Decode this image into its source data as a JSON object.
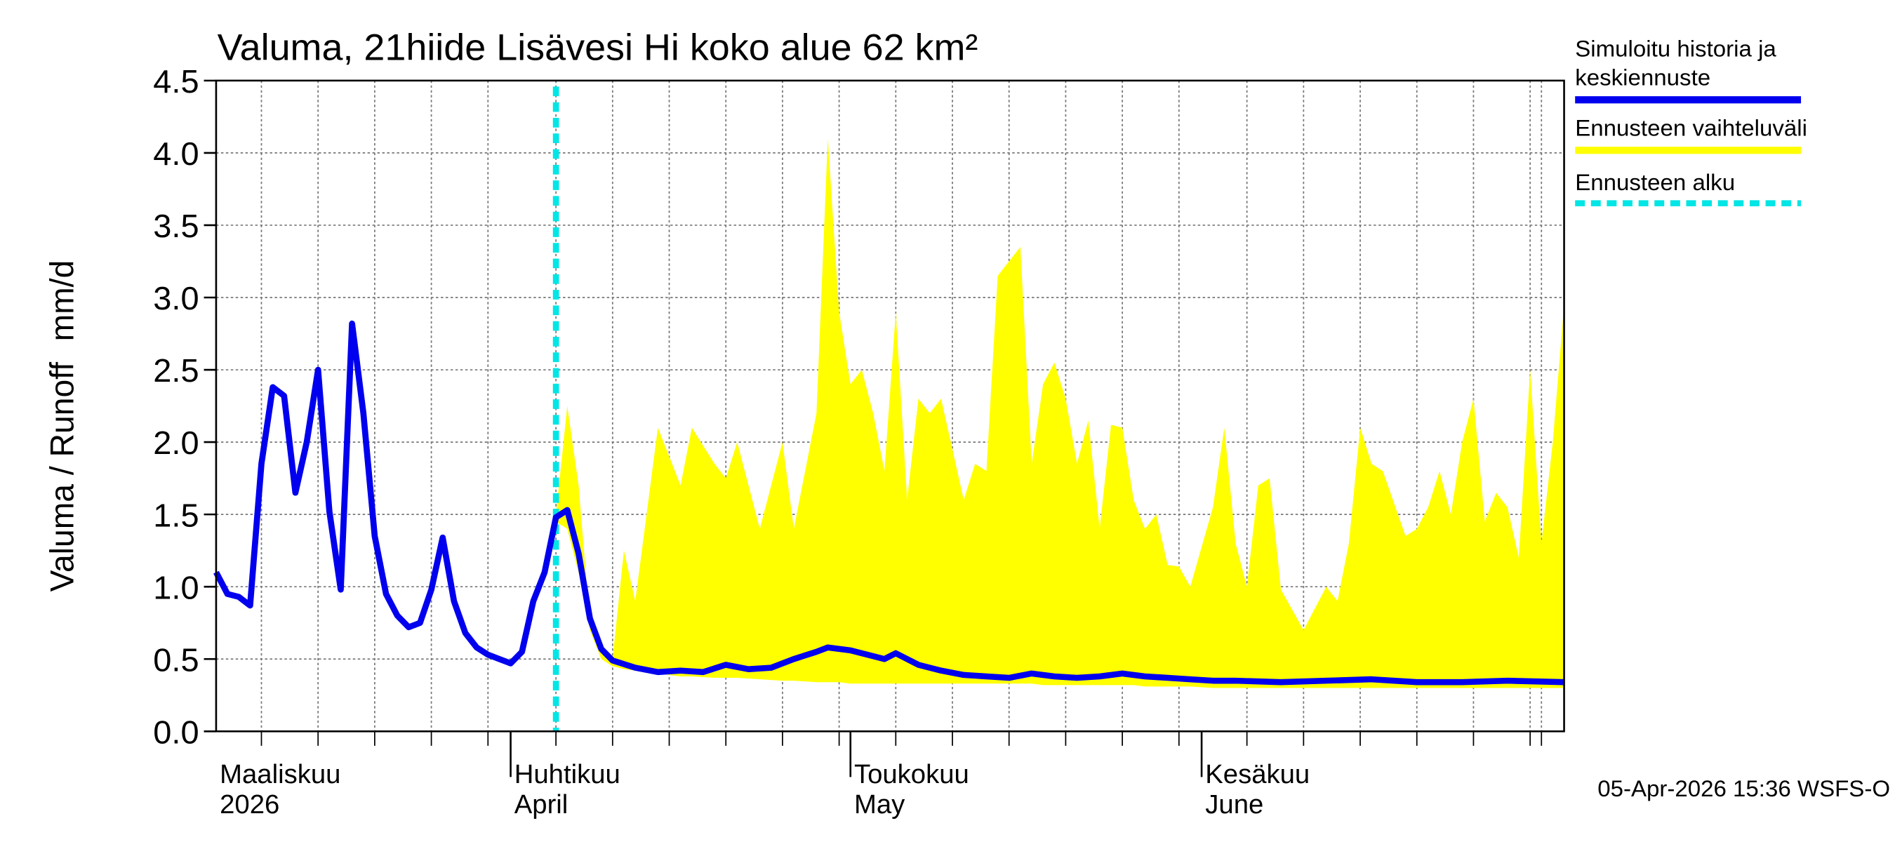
{
  "chart_data": {
    "type": "line",
    "title": "Valuma, 21hiide Lisävesi Hi koko alue 62 km²",
    "ylabel": "Valuma / Runoff",
    "yunit": "mm/d",
    "footer": "05-Apr-2026 15:36 WSFS-O",
    "xlim": [
      "2026-03-06",
      "2026-07-03"
    ],
    "ylim": [
      0,
      4.5
    ],
    "yticks": [
      {
        "value": 0,
        "label": "0.0"
      },
      {
        "value": 0.5,
        "label": "0.5"
      },
      {
        "value": 1,
        "label": "1.0"
      },
      {
        "value": 1.5,
        "label": "1.5"
      },
      {
        "value": 2,
        "label": "2.0"
      },
      {
        "value": 2.5,
        "label": "2.5"
      },
      {
        "value": 3,
        "label": "3.0"
      },
      {
        "value": 3.5,
        "label": "3.5"
      },
      {
        "value": 4,
        "label": "4.0"
      },
      {
        "value": 4.5,
        "label": "4.5"
      }
    ],
    "xticks": [
      {
        "value": "2026-03-06",
        "label": [
          "Maaliskuu",
          "2026"
        ]
      },
      {
        "value": "2026-04-01",
        "label": [
          "Huhtikuu",
          "April"
        ]
      },
      {
        "value": "2026-05-01",
        "label": [
          "Toukokuu",
          "May"
        ]
      },
      {
        "value": "2026-06-01",
        "label": [
          "Kesäkuu",
          "June"
        ]
      }
    ],
    "xgrid": [
      "2026-03-10",
      "2026-03-15",
      "2026-03-20",
      "2026-03-25",
      "2026-03-30",
      "2026-04-05",
      "2026-04-10",
      "2026-04-15",
      "2026-04-20",
      "2026-04-25",
      "2026-04-30",
      "2026-05-05",
      "2026-05-10",
      "2026-05-15",
      "2026-05-20",
      "2026-05-25",
      "2026-05-30",
      "2026-06-05",
      "2026-06-10",
      "2026-06-15",
      "2026-06-20",
      "2026-06-25",
      "2026-06-30",
      "2026-07-01"
    ],
    "grid": true,
    "forecast_start": {
      "name": "Ennusteen alku",
      "color": "#00e5e5",
      "x": "2026-04-05"
    },
    "band": {
      "name": "Ennusteen vaihteluväli",
      "color": "#ffff00",
      "x": [
        "2026-04-05",
        "2026-04-06",
        "2026-04-07",
        "2026-04-08",
        "2026-04-09",
        "2026-04-10",
        "2026-04-11",
        "2026-04-12",
        "2026-04-14",
        "2026-04-16",
        "2026-04-17",
        "2026-04-19",
        "2026-04-20",
        "2026-04-21",
        "2026-04-23",
        "2026-04-25",
        "2026-04-26",
        "2026-04-28",
        "2026-04-29",
        "2026-04-30",
        "2026-05-01",
        "2026-05-02",
        "2026-05-03",
        "2026-05-04",
        "2026-05-05",
        "2026-05-06",
        "2026-05-07",
        "2026-05-08",
        "2026-05-09",
        "2026-05-11",
        "2026-05-12",
        "2026-05-13",
        "2026-05-14",
        "2026-05-16",
        "2026-05-17",
        "2026-05-18",
        "2026-05-19",
        "2026-05-20",
        "2026-05-21",
        "2026-05-22",
        "2026-05-23",
        "2026-05-24",
        "2026-05-25",
        "2026-05-26",
        "2026-05-27",
        "2026-05-28",
        "2026-05-29",
        "2026-05-30",
        "2026-05-31",
        "2026-06-02",
        "2026-06-03",
        "2026-06-04",
        "2026-06-05",
        "2026-06-06",
        "2026-06-07",
        "2026-06-08",
        "2026-06-10",
        "2026-06-12",
        "2026-06-13",
        "2026-06-14",
        "2026-06-15",
        "2026-06-16",
        "2026-06-17",
        "2026-06-19",
        "2026-06-20",
        "2026-06-21",
        "2026-06-22",
        "2026-06-23",
        "2026-06-24",
        "2026-06-25",
        "2026-06-26",
        "2026-06-27",
        "2026-06-28",
        "2026-06-29",
        "2026-06-30",
        "2026-07-01",
        "2026-07-02",
        "2026-07-03"
      ],
      "upper": [
        1.5,
        2.25,
        1.7,
        0.75,
        0.55,
        0.5,
        1.25,
        0.9,
        2.1,
        1.7,
        2.1,
        1.85,
        1.75,
        2.0,
        1.4,
        2.0,
        1.4,
        2.2,
        4.1,
        2.9,
        2.4,
        2.5,
        2.2,
        1.8,
        2.9,
        1.6,
        2.3,
        2.2,
        2.3,
        1.6,
        1.85,
        1.8,
        3.15,
        3.35,
        1.85,
        2.4,
        2.55,
        2.3,
        1.85,
        2.15,
        1.4,
        2.12,
        2.1,
        1.6,
        1.4,
        1.5,
        1.15,
        1.14,
        1.0,
        1.55,
        2.1,
        1.3,
        1.0,
        1.7,
        1.75,
        0.98,
        0.7,
        1.0,
        0.9,
        1.3,
        2.1,
        1.85,
        1.8,
        1.35,
        1.4,
        1.55,
        1.8,
        1.5,
        2.0,
        2.3,
        1.45,
        1.65,
        1.55,
        1.2,
        2.5,
        1.3,
        2.0,
        2.95
      ],
      "lower": [
        1.45,
        1.4,
        1.1,
        0.7,
        0.5,
        0.45,
        0.43,
        0.42,
        0.4,
        0.38,
        0.38,
        0.37,
        0.37,
        0.37,
        0.36,
        0.35,
        0.35,
        0.34,
        0.34,
        0.34,
        0.33,
        0.33,
        0.33,
        0.33,
        0.33,
        0.33,
        0.33,
        0.33,
        0.33,
        0.33,
        0.33,
        0.33,
        0.33,
        0.33,
        0.33,
        0.32,
        0.32,
        0.32,
        0.32,
        0.32,
        0.32,
        0.32,
        0.32,
        0.32,
        0.31,
        0.31,
        0.31,
        0.31,
        0.31,
        0.3,
        0.3,
        0.3,
        0.3,
        0.3,
        0.3,
        0.3,
        0.3,
        0.3,
        0.3,
        0.3,
        0.3,
        0.3,
        0.3,
        0.3,
        0.3,
        0.3,
        0.3,
        0.3,
        0.3,
        0.3,
        0.3,
        0.3,
        0.3,
        0.3,
        0.3,
        0.3,
        0.3,
        0.3
      ]
    },
    "series": [
      {
        "name": "Simuloitu historia ja keskiennuste",
        "color": "#0000ee",
        "x": [
          "2026-03-06",
          "2026-03-07",
          "2026-03-08",
          "2026-03-09",
          "2026-03-10",
          "2026-03-11",
          "2026-03-12",
          "2026-03-13",
          "2026-03-14",
          "2026-03-15",
          "2026-03-16",
          "2026-03-17",
          "2026-03-18",
          "2026-03-19",
          "2026-03-20",
          "2026-03-21",
          "2026-03-22",
          "2026-03-23",
          "2026-03-24",
          "2026-03-25",
          "2026-03-26",
          "2026-03-27",
          "2026-03-28",
          "2026-03-29",
          "2026-03-30",
          "2026-03-31",
          "2026-04-01",
          "2026-04-02",
          "2026-04-03",
          "2026-04-04",
          "2026-04-05",
          "2026-04-06",
          "2026-04-07",
          "2026-04-08",
          "2026-04-09",
          "2026-04-10",
          "2026-04-12",
          "2026-04-14",
          "2026-04-16",
          "2026-04-18",
          "2026-04-20",
          "2026-04-22",
          "2026-04-24",
          "2026-04-26",
          "2026-04-28",
          "2026-04-29",
          "2026-05-01",
          "2026-05-03",
          "2026-05-04",
          "2026-05-05",
          "2026-05-07",
          "2026-05-09",
          "2026-05-11",
          "2026-05-13",
          "2026-05-15",
          "2026-05-17",
          "2026-05-19",
          "2026-05-21",
          "2026-05-23",
          "2026-05-25",
          "2026-05-27",
          "2026-05-29",
          "2026-05-31",
          "2026-06-02",
          "2026-06-04",
          "2026-06-08",
          "2026-06-12",
          "2026-06-16",
          "2026-06-20",
          "2026-06-24",
          "2026-06-28",
          "2026-07-03"
        ],
        "values": [
          1.1,
          0.95,
          0.93,
          0.87,
          1.85,
          2.38,
          2.32,
          1.65,
          2.0,
          2.5,
          1.52,
          0.98,
          2.82,
          2.2,
          1.35,
          0.95,
          0.8,
          0.72,
          0.75,
          0.98,
          1.34,
          0.9,
          0.68,
          0.58,
          0.53,
          0.5,
          0.47,
          0.55,
          0.9,
          1.1,
          1.48,
          1.53,
          1.23,
          0.78,
          0.57,
          0.49,
          0.44,
          0.41,
          0.42,
          0.41,
          0.46,
          0.43,
          0.44,
          0.5,
          0.55,
          0.58,
          0.56,
          0.52,
          0.5,
          0.54,
          0.46,
          0.42,
          0.39,
          0.38,
          0.37,
          0.4,
          0.38,
          0.37,
          0.38,
          0.4,
          0.38,
          0.37,
          0.36,
          0.35,
          0.35,
          0.34,
          0.35,
          0.36,
          0.34,
          0.34,
          0.35,
          0.34
        ]
      }
    ]
  }
}
